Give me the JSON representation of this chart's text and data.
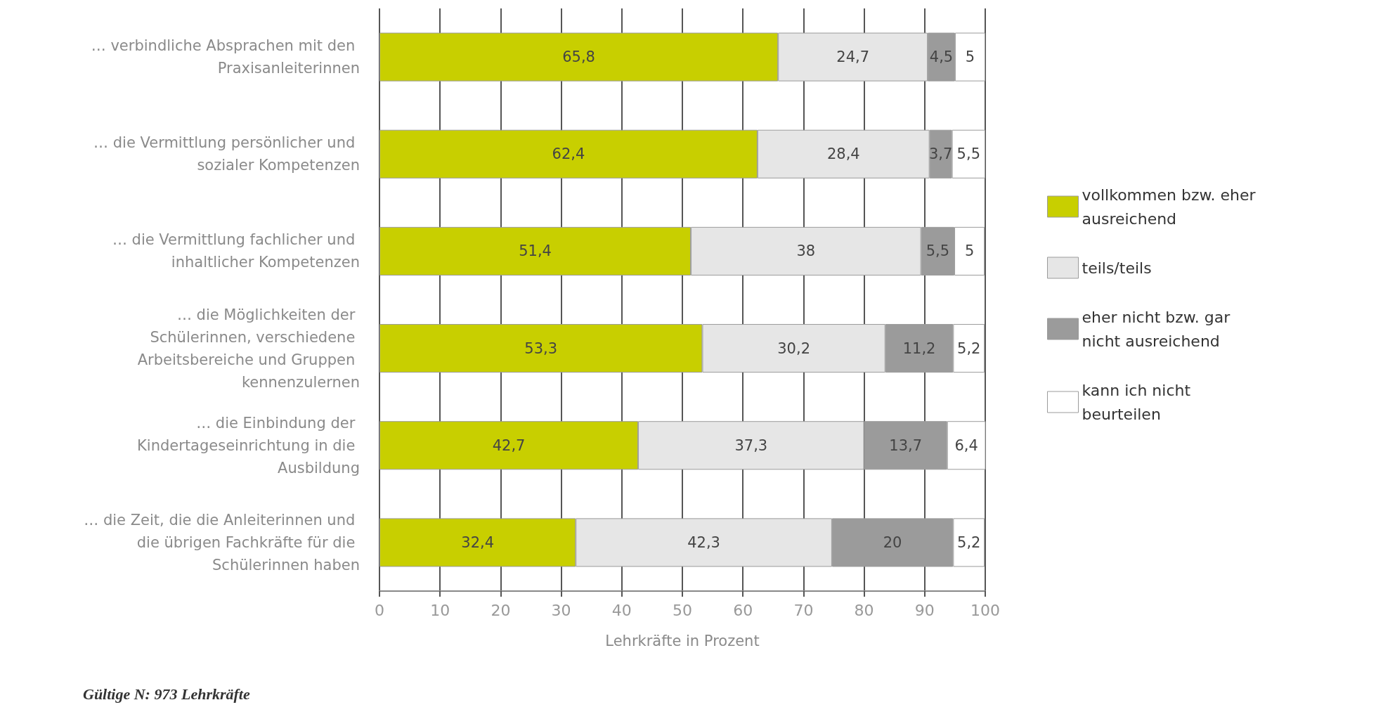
{
  "chart_data": {
    "type": "bar",
    "orientation": "horizontal",
    "stacked": true,
    "categories": [
      "… verbindliche Absprachen mit den Praxisanleiterinnen",
      "… die Vermittlung persönlicher und sozialer Kompetenzen",
      "… die Vermittlung fachlicher und inhaltlicher Kompetenzen",
      "… die Möglichkeiten der Schülerinnen, verschiedene Arbeitsbereiche und Gruppen kennenzulernen",
      "… die Einbindung der Kindertageseinrichtung in die Ausbildung",
      "… die Zeit, die die Anleiterinnen und die übrigen Fachkräfte für die Schülerinnen haben"
    ],
    "series": [
      {
        "name": "vollkommen bzw. eher ausreichend",
        "color": "#c8cf00",
        "values": [
          65.8,
          62.4,
          51.4,
          53.3,
          42.7,
          32.4
        ],
        "value_labels": [
          "65,8",
          "62,4",
          "51,4",
          "53,3",
          "42,7",
          "32,4"
        ]
      },
      {
        "name": "teils/teils",
        "color": "#e6e6e6",
        "values": [
          24.7,
          28.4,
          38,
          30.2,
          37.3,
          42.3
        ],
        "value_labels": [
          "24,7",
          "28,4",
          "38",
          "30,2",
          "37,3",
          "42,3"
        ]
      },
      {
        "name": "eher nicht bzw. gar nicht ausreichend",
        "color": "#9b9b9b",
        "values": [
          4.5,
          3.7,
          5.5,
          11.2,
          13.7,
          20
        ],
        "value_labels": [
          "4,5",
          "3,7",
          "5,5",
          "11,2",
          "13,7",
          "20"
        ]
      },
      {
        "name": "kann ich nicht beurteilen",
        "color": "#ffffff",
        "values": [
          5,
          5.5,
          5,
          5.2,
          6.4,
          5.2
        ],
        "value_labels": [
          "5",
          "5,5",
          "5",
          "5,2",
          "6,4",
          "5,2"
        ]
      }
    ],
    "xlabel": "Lehrkräfte in Prozent",
    "xlim": [
      0,
      100
    ],
    "xticks": [
      0,
      10,
      20,
      30,
      40,
      50,
      60,
      70,
      80,
      90,
      100
    ],
    "grid": "x",
    "legend": "right",
    "annotations": [
      "Gültige N: 973 Lehrkräfte"
    ]
  }
}
